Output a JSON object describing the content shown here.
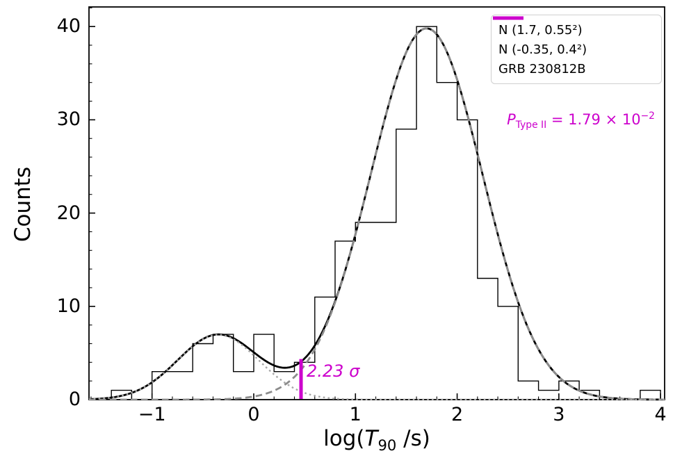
{
  "figure": {
    "background": "#ffffff",
    "axis_color": "#000000"
  },
  "axes": {
    "ylabel": "Counts",
    "xlabel_parts": {
      "prefix": "log(",
      "symbol": "T",
      "subscript": "90",
      "suffix": " /s)"
    },
    "x_tick_values": [
      -1,
      0,
      1,
      2,
      3,
      4
    ],
    "x_tick_labels": [
      "−1",
      "0",
      "1",
      "2",
      "3",
      "4"
    ],
    "y_tick_values": [
      0,
      10,
      20,
      30,
      40
    ],
    "y_tick_labels": [
      "0",
      "10",
      "20",
      "30",
      "40"
    ]
  },
  "legend": {
    "items": [
      {
        "label": "N (1.7, 0.55²)",
        "style": "dashed",
        "color": "#8c8c8c"
      },
      {
        "label": "N (-0.35, 0.4²)",
        "style": "dotted",
        "color": "#a6a6a6"
      },
      {
        "label": "GRB 230812B",
        "style": "solid",
        "color": "#cc00cc"
      }
    ]
  },
  "annotations": {
    "probability": {
      "symbol": "P",
      "subscript": "Type II",
      "equals": " = 1.79 × 10",
      "exponent": "−2",
      "color": "#cc00cc"
    },
    "sigma_label": {
      "text": "2.23 σ",
      "color": "#cc00cc"
    }
  },
  "chart_data": {
    "type": "histogram",
    "title": "",
    "xlabel": "log(T90 /s)",
    "ylabel": "Counts",
    "xlim": [
      -1.62,
      4.04
    ],
    "ylim": [
      0,
      42.1
    ],
    "x_minor_step": 0.2,
    "y_minor_step": 2,
    "grid": false,
    "legend_position": "upper right",
    "histogram": {
      "bin_start": -1.4,
      "bin_width": 0.2,
      "color": "#000000",
      "counts": [
        1,
        0,
        3,
        3,
        6,
        7,
        3,
        7,
        3,
        4,
        11,
        17,
        19,
        19,
        29,
        40,
        34,
        30,
        13,
        10,
        2,
        1,
        2,
        1,
        0,
        0,
        1
      ]
    },
    "curves": [
      {
        "name": "N (1.7, 0.55²)",
        "component": "type-ii-gaussian",
        "amplitude": 39.8,
        "mean": 1.7,
        "sigma": 0.55,
        "style": "dashed",
        "color": "#8c8c8c"
      },
      {
        "name": "N (-0.35, 0.4²)",
        "component": "type-i-gaussian",
        "amplitude": 6.95,
        "mean": -0.35,
        "sigma": 0.4,
        "style": "dotted",
        "color": "#a6a6a6"
      },
      {
        "name": "total fit",
        "component": "sum",
        "style": "solid",
        "color": "#000000"
      }
    ],
    "grb_line": {
      "label": "GRB 230812B",
      "x": 0.465,
      "top": 4.35,
      "color": "#cc00cc",
      "sigma_offset": "2.23 σ",
      "p_type_ii": "1.79 × 10⁻²"
    }
  }
}
